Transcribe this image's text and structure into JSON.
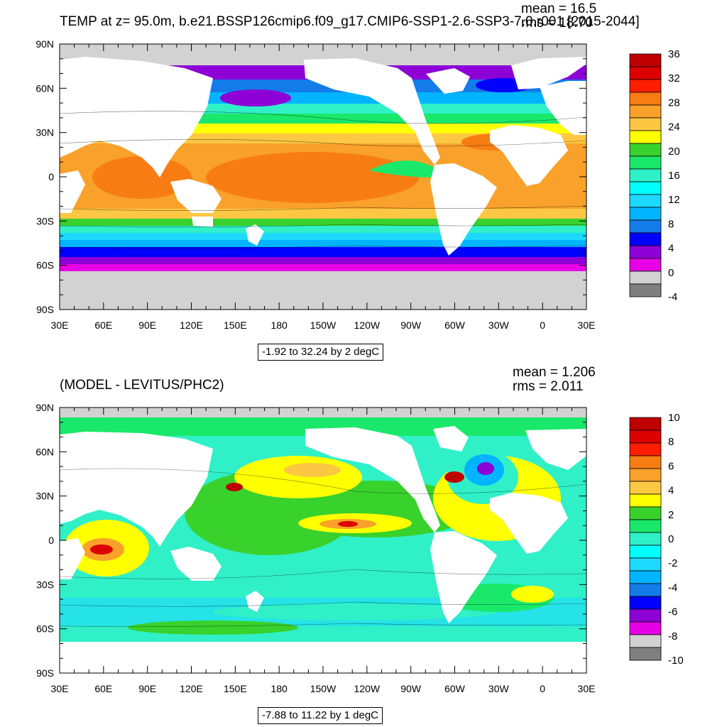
{
  "colors": {
    "land": "#ffffff",
    "fill_value": "#cccccc",
    "frame": "#000000"
  },
  "panels": [
    {
      "title": "TEMP at z=  95.0m, b.e21.BSSP126cmip6.f09_g17.CMIP6-SSP1-2.6-SSP3-7.0.r001 [2015-2044]",
      "mean_text": "mean = 16.5",
      "rms_text": "rms = 18.70",
      "range_text": "-1.92 to 32.24 by 2 degC",
      "lat_labels": [
        "90N",
        "60N",
        "30N",
        "0",
        "30S",
        "60S",
        "90S"
      ],
      "lon_labels": [
        "30E",
        "60E",
        "90E",
        "120E",
        "150E",
        "180",
        "150W",
        "120W",
        "90W",
        "60W",
        "30W",
        "0",
        "30E"
      ],
      "colorbar": {
        "labels": [
          "36",
          "32",
          "28",
          "24",
          "20",
          "16",
          "12",
          "8",
          "4",
          "0",
          "-4"
        ],
        "colors": [
          "#be0000",
          "#dc0000",
          "#ff1e00",
          "#f77d13",
          "#f9a12a",
          "#fcc843",
          "#ffff00",
          "#39d12c",
          "#1ae86a",
          "#30f0c8",
          "#00ffff",
          "#1ed9ff",
          "#00b4ff",
          "#137ce9",
          "#0000ff",
          "#8d00d6",
          "#e600e6",
          "#d2d2d2",
          "#7f7f7f"
        ]
      }
    },
    {
      "title": "(MODEL - LEVITUS/PHC2)",
      "mean_text": "mean = 1.206",
      "rms_text": "rms = 2.011",
      "range_text": "-7.88 to 11.22 by 1 degC",
      "lat_labels": [
        "90N",
        "60N",
        "30N",
        "0",
        "30S",
        "60S",
        "90S"
      ],
      "lon_labels": [
        "30E",
        "60E",
        "90E",
        "120E",
        "150E",
        "180",
        "150W",
        "120W",
        "90W",
        "60W",
        "30W",
        "0",
        "30E"
      ],
      "colorbar": {
        "labels": [
          "10",
          "8",
          "6",
          "4",
          "2",
          "0",
          "-2",
          "-4",
          "-6",
          "-8",
          "-10"
        ],
        "colors": [
          "#be0000",
          "#dc0000",
          "#ff1e00",
          "#f77d13",
          "#f9a12a",
          "#fcc843",
          "#ffff00",
          "#39d12c",
          "#1ae86a",
          "#30f0c8",
          "#00ffff",
          "#1ed9ff",
          "#00b4ff",
          "#137ce9",
          "#0000ff",
          "#8d00d6",
          "#e600e6",
          "#d2d2d2",
          "#7f7f7f"
        ]
      }
    }
  ]
}
